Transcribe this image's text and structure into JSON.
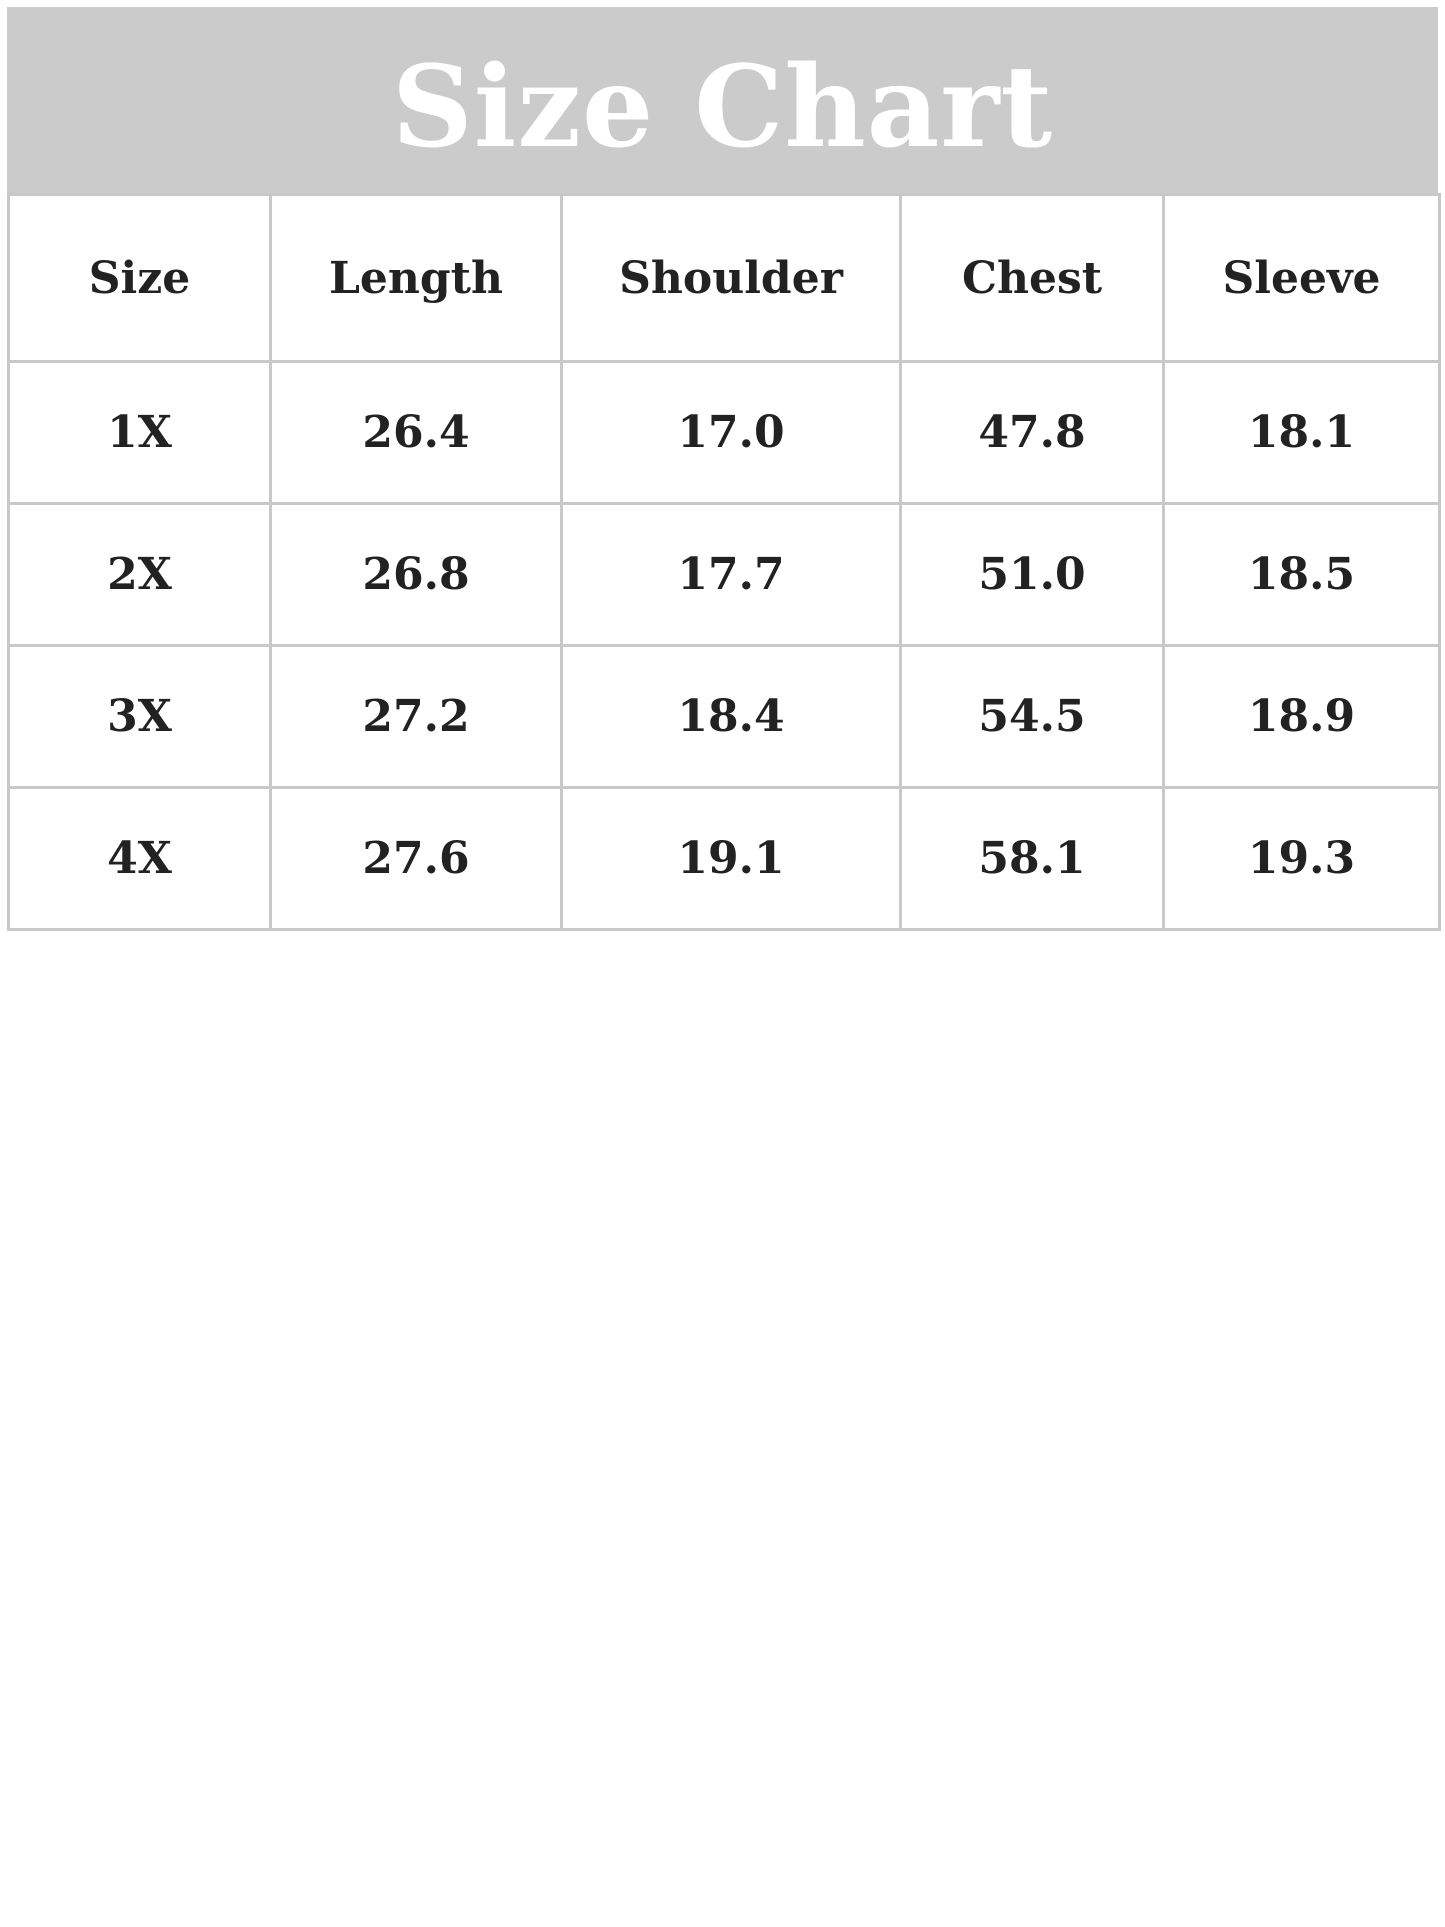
{
  "title": "Size Chart",
  "colors": {
    "title_bar": "#cbcbcb",
    "title_text": "#ffffff",
    "border": "#c8c8c8",
    "text": "#222222"
  },
  "table": {
    "headers": [
      "Size",
      "Length",
      "Shoulder",
      "Chest",
      "Sleeve"
    ],
    "rows": [
      [
        "1X",
        "26.4",
        "17.0",
        "47.8",
        "18.1"
      ],
      [
        "2X",
        "26.8",
        "17.7",
        "51.0",
        "18.5"
      ],
      [
        "3X",
        "27.2",
        "18.4",
        "54.5",
        "18.9"
      ],
      [
        "4X",
        "27.6",
        "19.1",
        "58.1",
        "19.3"
      ]
    ]
  }
}
